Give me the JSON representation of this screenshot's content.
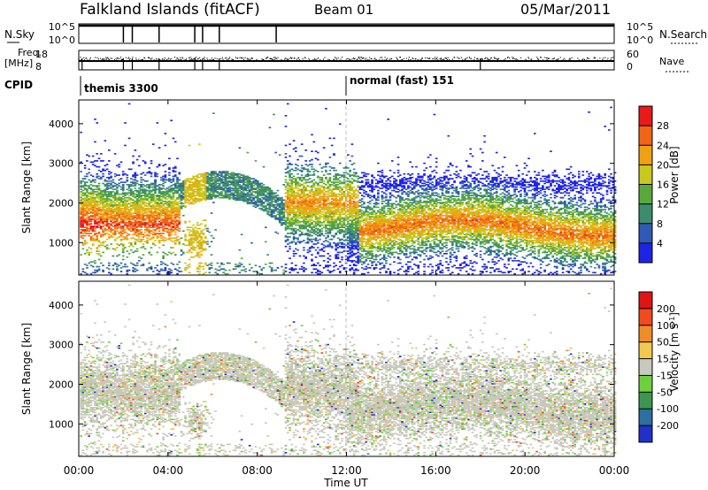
{
  "header": {
    "station": "Falkland Islands (fitACF)",
    "beam": "Beam 01",
    "date": "05/Mar/2011"
  },
  "params": {
    "nsky_label": "N.Sky",
    "nsky_ticks": [
      "10^5",
      "10^0"
    ],
    "nsearch_label": "N.Search",
    "nsearch_ticks": [
      "10^5",
      "10^0"
    ],
    "freq_label": "Freq.",
    "freq_unit": "[MHz]",
    "freq_ticks": [
      "18",
      "8"
    ],
    "nave_label": "Nave",
    "nave_ticks": [
      "60",
      "0"
    ],
    "cpid_label": "CPID",
    "cpid_segments": [
      "themis 3300",
      "normal (fast) 151"
    ]
  },
  "colors": {
    "power": [
      "#1e24e6",
      "#2f5bb5",
      "#3c8c6e",
      "#5aa83c",
      "#c8c81e",
      "#f0a014",
      "#f06414",
      "#e81a1a"
    ],
    "velocity": [
      "#2030c8",
      "#2e6ea0",
      "#3c9650",
      "#6ed03c",
      "#c8c8bc",
      "#f0c850",
      "#f08c28",
      "#f04a1e",
      "#e01414"
    ]
  },
  "chart_data": [
    {
      "type": "heatmap",
      "name": "power",
      "xlabel": "",
      "ylabel": "Slant Range [km]",
      "xlim": [
        0,
        24
      ],
      "ylim": [
        180,
        4600
      ],
      "yticks": [
        1000,
        2000,
        3000,
        4000
      ],
      "colorbar": {
        "label": "Power [dB]",
        "ticks": [
          "4",
          "8",
          "12",
          "16",
          "20",
          "24",
          "28"
        ],
        "range": [
          0,
          30
        ]
      }
    },
    {
      "type": "heatmap",
      "name": "velocity",
      "xlabel": "Time UT",
      "ylabel": "Slant Range [km]",
      "xlim": [
        0,
        24
      ],
      "ylim": [
        180,
        4600
      ],
      "yticks": [
        1000,
        2000,
        3000,
        4000
      ],
      "xticks": [
        "00:00",
        "04:00",
        "08:00",
        "12:00",
        "16:00",
        "20:00",
        "00:00"
      ],
      "colorbar": {
        "label": "Velocity [m s^-1]",
        "ticks": [
          "200",
          "100",
          "50",
          "15",
          "-15",
          "-50",
          "-100",
          "-200"
        ]
      }
    }
  ]
}
